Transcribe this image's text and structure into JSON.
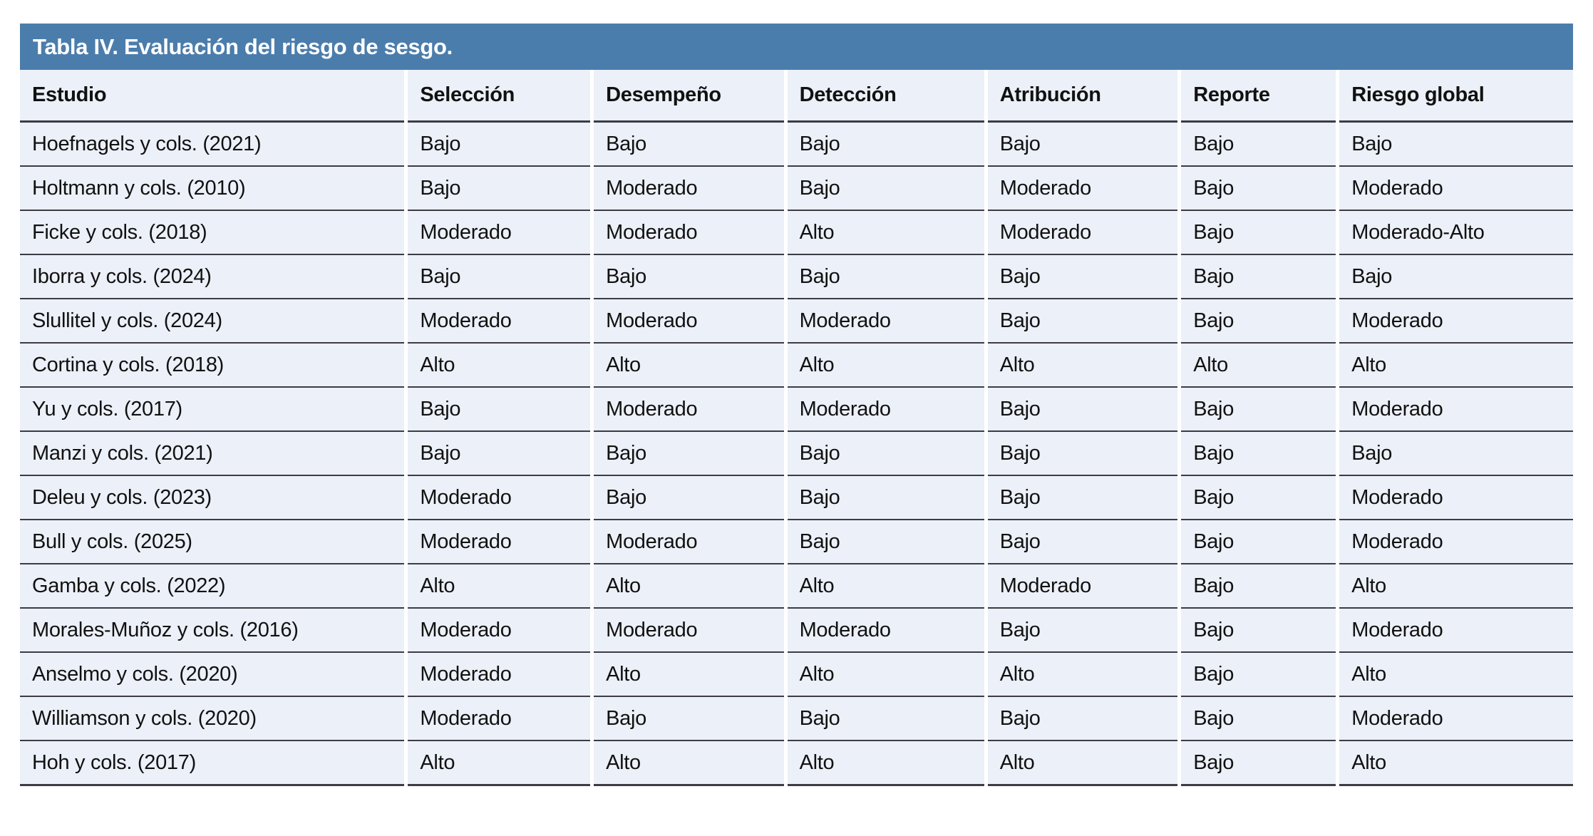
{
  "table": {
    "title": "Tabla IV. Evaluación del riesgo de sesgo.",
    "columns": [
      "Estudio",
      "Selección",
      "Desempeño",
      "Detección",
      "Atribución",
      "Reporte",
      "Riesgo global"
    ],
    "rows": [
      [
        "Hoefnagels y cols. (2021)",
        "Bajo",
        "Bajo",
        "Bajo",
        "Bajo",
        "Bajo",
        "Bajo"
      ],
      [
        "Holtmann y cols. (2010)",
        "Bajo",
        "Moderado",
        "Bajo",
        "Moderado",
        "Bajo",
        "Moderado"
      ],
      [
        "Ficke y cols. (2018)",
        "Moderado",
        "Moderado",
        "Alto",
        "Moderado",
        "Bajo",
        "Moderado-Alto"
      ],
      [
        "Iborra y cols. (2024)",
        "Bajo",
        "Bajo",
        "Bajo",
        "Bajo",
        "Bajo",
        "Bajo"
      ],
      [
        "Slullitel y cols. (2024)",
        "Moderado",
        "Moderado",
        "Moderado",
        "Bajo",
        "Bajo",
        "Moderado"
      ],
      [
        "Cortina y cols. (2018)",
        "Alto",
        "Alto",
        "Alto",
        "Alto",
        "Alto",
        "Alto"
      ],
      [
        "Yu y cols. (2017)",
        "Bajo",
        "Moderado",
        "Moderado",
        "Bajo",
        "Bajo",
        "Moderado"
      ],
      [
        "Manzi y cols. (2021)",
        "Bajo",
        "Bajo",
        "Bajo",
        "Bajo",
        "Bajo",
        "Bajo"
      ],
      [
        "Deleu y cols. (2023)",
        "Moderado",
        "Bajo",
        "Bajo",
        "Bajo",
        "Bajo",
        "Moderado"
      ],
      [
        "Bull y cols. (2025)",
        "Moderado",
        "Moderado",
        "Bajo",
        "Bajo",
        "Bajo",
        "Moderado"
      ],
      [
        "Gamba y cols. (2022)",
        "Alto",
        "Alto",
        "Alto",
        "Moderado",
        "Bajo",
        "Alto"
      ],
      [
        "Morales-Muñoz y cols. (2016)",
        "Moderado",
        "Moderado",
        "Moderado",
        "Bajo",
        "Bajo",
        "Moderado"
      ],
      [
        "Anselmo y cols. (2020)",
        "Moderado",
        "Alto",
        "Alto",
        "Alto",
        "Bajo",
        "Alto"
      ],
      [
        "Williamson y cols. (2020)",
        "Moderado",
        "Bajo",
        "Bajo",
        "Bajo",
        "Bajo",
        "Moderado"
      ],
      [
        "Hoh y cols. (2017)",
        "Alto",
        "Alto",
        "Alto",
        "Alto",
        "Bajo",
        "Alto"
      ]
    ],
    "colors": {
      "title_bar_background": "#4b7dac",
      "row_background": "#ecf0f8",
      "rule": "#3b3c44",
      "text": "#111111",
      "title_text": "#ffffff"
    }
  }
}
